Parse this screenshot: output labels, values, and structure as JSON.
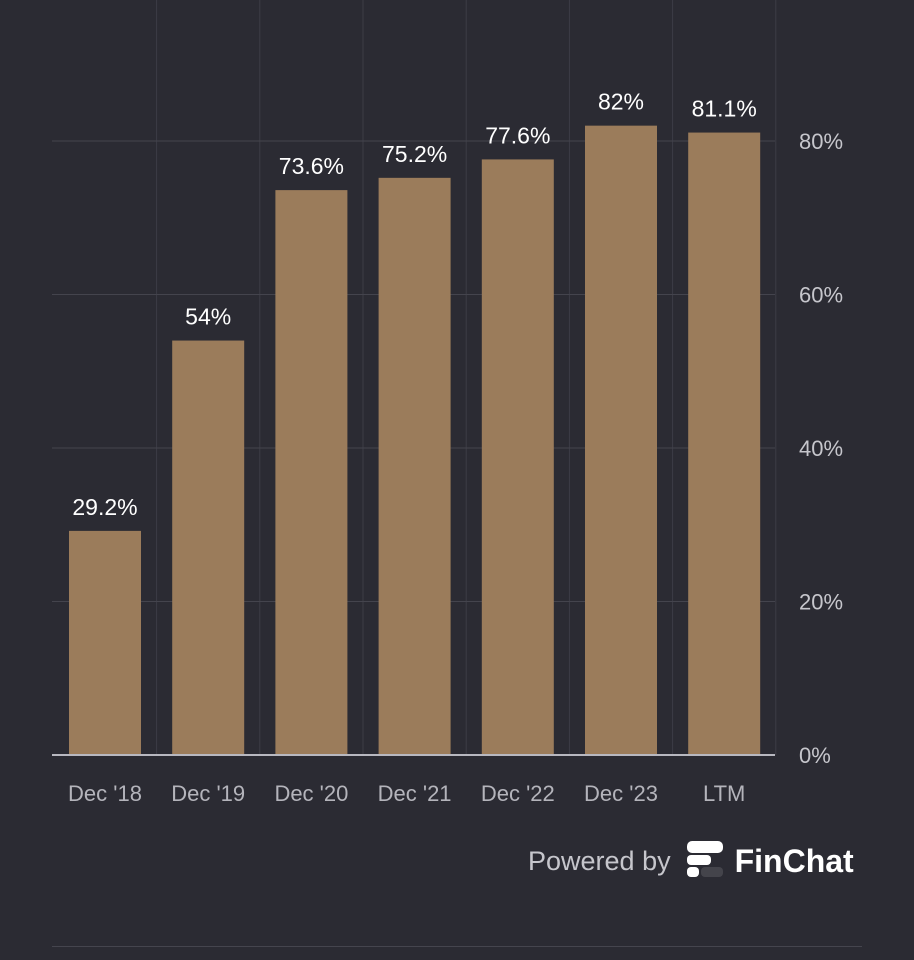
{
  "chart_data": {
    "type": "bar",
    "categories": [
      "Dec '18",
      "Dec '19",
      "Dec '20",
      "Dec '21",
      "Dec '22",
      "Dec '23",
      "LTM"
    ],
    "values": [
      29.2,
      54,
      73.6,
      75.2,
      77.6,
      82,
      81.1
    ],
    "value_labels": [
      "29.2%",
      "54%",
      "73.6%",
      "75.2%",
      "77.6%",
      "82%",
      "81.1%"
    ],
    "y_ticks": [
      0,
      20,
      40,
      60,
      80
    ],
    "y_tick_labels": [
      "0%",
      "20%",
      "40%",
      "60%",
      "80%"
    ],
    "ylim": [
      0,
      80
    ],
    "y_axis_position": "right",
    "grid": true,
    "bar_color": "#9b7c5b"
  },
  "branding": {
    "powered_by": "Powered by",
    "name": "FinChat",
    "logo_icon": "finchat-logo-icon"
  }
}
